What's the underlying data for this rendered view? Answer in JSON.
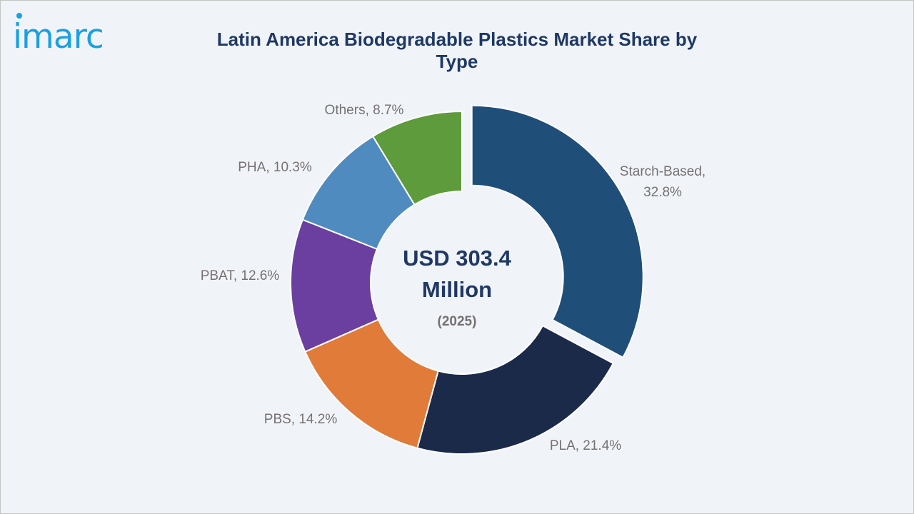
{
  "brand": {
    "logo_text": "imarc",
    "logo_color": "#1ba0e2"
  },
  "chart_data": {
    "type": "pie",
    "variant": "donut",
    "title": "Latin America Biodegradable Plastics Market Share by Type",
    "center_value_line1": "USD 303.4",
    "center_value_line2": "Million",
    "center_year": "(2025)",
    "unit": "%",
    "categories": [
      "Starch-Based",
      "PLA",
      "PBS",
      "PBAT",
      "PHA",
      "Others"
    ],
    "values": [
      32.8,
      21.4,
      14.2,
      12.6,
      10.3,
      8.7
    ],
    "labels": [
      "Starch-Based,",
      "PLA, 21.4%",
      "PBS, 14.2%",
      "PBAT, 12.6%",
      "PHA, 10.3%",
      "Others, 8.7%"
    ],
    "label_line2": [
      "32.8%",
      "",
      "",
      "",
      "",
      ""
    ],
    "colors": [
      "#1f4e79",
      "#1c2a4a",
      "#e07b39",
      "#6b3fa0",
      "#4f8bbf",
      "#5e9b3c"
    ],
    "exploded_slice": "Starch-Based",
    "legend": "none"
  }
}
